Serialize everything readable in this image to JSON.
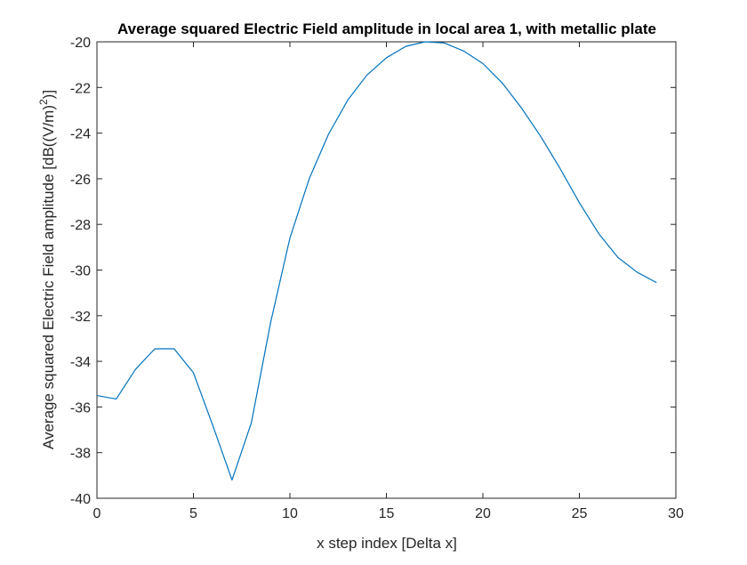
{
  "chart_data": {
    "type": "line",
    "title": "Average squared Electric Field amplitude in local area 1, with metallic plate",
    "xlabel": "x step index [Delta x]",
    "ylabel_prefix": "Average squared Electric Field amplitude [dB((V/m)",
    "ylabel_sup": "2",
    "ylabel_suffix": ")]",
    "xlim": [
      0,
      30
    ],
    "ylim": [
      -40,
      -20
    ],
    "xticks": [
      0,
      5,
      10,
      15,
      20,
      25,
      30
    ],
    "yticks": [
      -40,
      -38,
      -36,
      -34,
      -32,
      -30,
      -28,
      -26,
      -24,
      -22,
      -20
    ],
    "grid": false,
    "series": [
      {
        "color": "#0072BD",
        "x": [
          0,
          1,
          2,
          3,
          4,
          5,
          6,
          7,
          8,
          9,
          10,
          11,
          12,
          13,
          14,
          15,
          16,
          17,
          18,
          19,
          20,
          21,
          22,
          23,
          24,
          25,
          26,
          27,
          28,
          29
        ],
        "y": [
          -35.5,
          -35.65,
          -34.35,
          -33.45,
          -33.45,
          -34.5,
          -36.8,
          -39.2,
          -36.7,
          -32.3,
          -28.6,
          -26.0,
          -24.05,
          -22.55,
          -21.45,
          -20.7,
          -20.2,
          -20.0,
          -20.05,
          -20.4,
          -20.95,
          -21.8,
          -22.9,
          -24.15,
          -25.55,
          -27.05,
          -28.4,
          -29.45,
          -30.1,
          -30.55
        ]
      }
    ]
  }
}
